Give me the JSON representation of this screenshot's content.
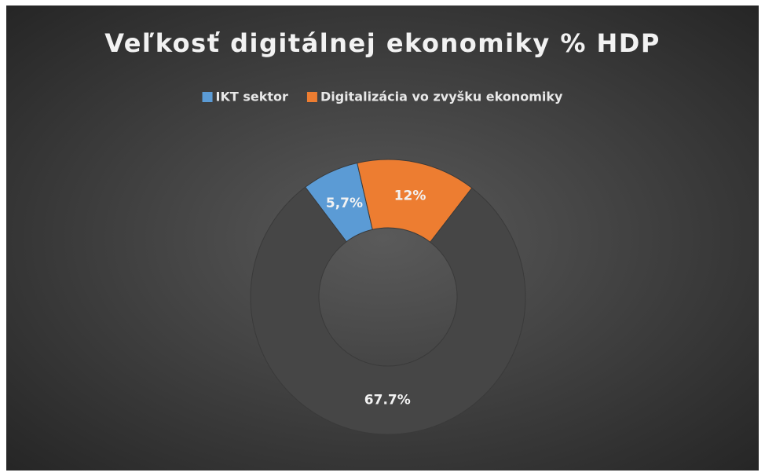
{
  "chart_data": {
    "type": "donut",
    "title": "Veľkosť digitálnej ekonomiky % HDP",
    "categories": [
      "IKT sektor",
      "Digitalizácia vo zvyšku ekonomiky",
      null
    ],
    "values": [
      5.7,
      12,
      67.7
    ],
    "value_labels": [
      "5,7%",
      "12%",
      "67.7%"
    ],
    "colors": [
      "#5b9bd5",
      "#ed7d31",
      "#464646"
    ],
    "legend": "top"
  }
}
